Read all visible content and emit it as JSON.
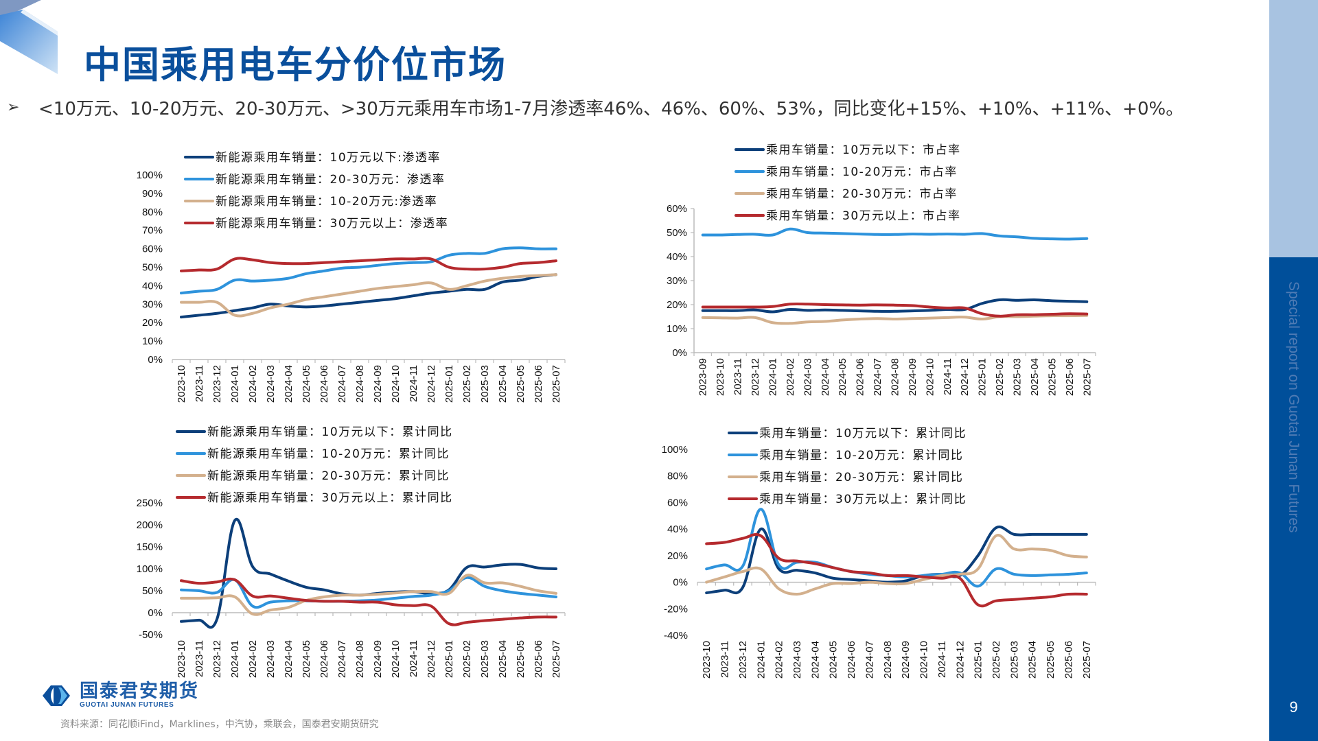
{
  "title": "中国乘用电车分价位市场",
  "bullet": "<10万元、10-20万元、20-30万元、>30万元乘用车市场1-7月渗透率46%、46%、60%、53%，同比变化+15%、+10%、+11%、+0%。",
  "sidebar": {
    "text": "Special report on Guotai Junan Futures",
    "page_number": "9",
    "colors": {
      "top": "#a8c3e1",
      "bottom": "#004f9a"
    }
  },
  "logo": {
    "cn": "国泰君安期货",
    "en": "GUOTAI JUNAN FUTURES"
  },
  "source": "资料来源：同花顺iFind，Marklines，中汽协，乘联会，国泰君安期货研究",
  "chart_data": [
    {
      "type": "line",
      "categories": [
        "2023-10",
        "2023-11",
        "2023-12",
        "2024-01",
        "2024-02",
        "2024-03",
        "2024-04",
        "2024-05",
        "2024-06",
        "2024-07",
        "2024-08",
        "2024-09",
        "2024-10",
        "2024-11",
        "2024-12",
        "2025-01",
        "2025-02",
        "2025-03",
        "2025-04",
        "2025-05",
        "2025-06",
        "2025-07"
      ],
      "ylim": [
        0,
        100
      ],
      "yticks": [
        0,
        10,
        20,
        30,
        40,
        50,
        60,
        70,
        80,
        90,
        100
      ],
      "yunit": "%",
      "legend_placement": "top",
      "series": [
        {
          "name": "新能源乘用车销量：10万元以下:渗透率",
          "color": "#0c3f7a",
          "values": [
            23,
            24,
            25,
            26.5,
            28,
            30,
            29,
            28.5,
            29,
            30,
            31,
            32,
            33,
            34.5,
            36,
            37,
            38,
            38,
            42,
            43,
            45,
            46
          ]
        },
        {
          "name": "新能源乘用车销量：20-30万元：渗透率",
          "color": "#2e93dc",
          "values": [
            36,
            37,
            38,
            43,
            42.5,
            43,
            44,
            46.5,
            48,
            49.5,
            50,
            51,
            52,
            52.5,
            53,
            56.5,
            57.5,
            57.5,
            60,
            60.5,
            60,
            60
          ]
        },
        {
          "name": "新能源乘用车销量：10-20万元:渗透率",
          "color": "#d3b08d",
          "values": [
            31,
            31,
            31,
            24,
            25,
            28,
            30,
            32.5,
            34,
            35.5,
            37,
            38.5,
            39.5,
            40.5,
            41.5,
            38,
            40,
            42.5,
            44,
            45,
            45.5,
            46
          ]
        },
        {
          "name": "新能源乘用车销量：30万元以上：渗透率",
          "color": "#b52a2e",
          "values": [
            48,
            48.5,
            49,
            54.5,
            54,
            52.5,
            52,
            52,
            52.5,
            53,
            53.5,
            54,
            54.5,
            54.5,
            54.5,
            50,
            49,
            49,
            50,
            52,
            52.5,
            53.5
          ]
        }
      ]
    },
    {
      "type": "line",
      "categories": [
        "2023-09",
        "2023-10",
        "2023-11",
        "2023-12",
        "2024-01",
        "2024-02",
        "2024-03",
        "2024-04",
        "2024-05",
        "2024-06",
        "2024-07",
        "2024-08",
        "2024-09",
        "2024-10",
        "2024-11",
        "2024-12",
        "2025-01",
        "2025-02",
        "2025-03",
        "2025-04",
        "2025-05",
        "2025-06",
        "2025-07"
      ],
      "ylim": [
        0,
        60
      ],
      "yticks": [
        0,
        10,
        20,
        30,
        40,
        50,
        60
      ],
      "yunit": "%",
      "legend_placement": "top",
      "series": [
        {
          "name": "乘用车销量：10万元以下：市占率",
          "color": "#0c3f7a",
          "values": [
            17.5,
            17.5,
            17.5,
            17.8,
            17,
            18,
            17.6,
            17.8,
            17.6,
            17.4,
            17.2,
            17.2,
            17.4,
            17.6,
            18,
            18,
            20.5,
            22,
            21.8,
            22,
            21.6,
            21.4,
            21.2
          ]
        },
        {
          "name": "乘用车销量：10-20万元：市占率",
          "color": "#2e93dc",
          "values": [
            49,
            49,
            49.2,
            49.3,
            49,
            51.5,
            50,
            49.8,
            49.6,
            49.4,
            49.2,
            49.2,
            49.4,
            49.3,
            49.4,
            49.3,
            49.6,
            48.6,
            48.2,
            47.6,
            47.4,
            47.3,
            47.5
          ]
        },
        {
          "name": "乘用车销量：20-30万元：市占率",
          "color": "#d3b08d",
          "values": [
            14.6,
            14.5,
            14.4,
            14.6,
            12.5,
            12.2,
            12.8,
            13,
            13.6,
            14,
            14.2,
            14,
            14.2,
            14.4,
            14.6,
            14.8,
            14,
            15,
            15,
            15.2,
            15.4,
            15.4,
            15.5
          ]
        },
        {
          "name": "乘用车销量：30万元以上：市占率",
          "color": "#b52a2e",
          "values": [
            19,
            19,
            19,
            19,
            19.2,
            20.2,
            20.2,
            20,
            19.9,
            19.8,
            19.9,
            19.8,
            19.6,
            19,
            18.6,
            18.6,
            16.2,
            15.2,
            15.8,
            15.8,
            16,
            16.2,
            16.1
          ]
        }
      ]
    },
    {
      "type": "line",
      "categories": [
        "2023-10",
        "2023-11",
        "2023-12",
        "2024-01",
        "2024-02",
        "2024-03",
        "2024-04",
        "2024-05",
        "2024-06",
        "2024-07",
        "2024-08",
        "2024-09",
        "2024-10",
        "2024-11",
        "2024-12",
        "2025-01",
        "2025-02",
        "2025-03",
        "2025-04",
        "2025-05",
        "2025-06",
        "2025-07"
      ],
      "ylim": [
        -50,
        250
      ],
      "yticks": [
        -50,
        0,
        50,
        100,
        150,
        200,
        250
      ],
      "yunit": "%",
      "legend_placement": "top",
      "series": [
        {
          "name": "新能源乘用车销量：10万元以下：累计同比",
          "color": "#0c3f7a",
          "values": [
            -20,
            -17,
            -15,
            210,
            105,
            88,
            72,
            58,
            52,
            43,
            40,
            44,
            47,
            48,
            44,
            52,
            103,
            104,
            109,
            110,
            102,
            100
          ]
        },
        {
          "name": "新能源乘用车销量：10-20万元：累计同比",
          "color": "#2e93dc",
          "values": [
            52,
            50,
            46,
            75,
            15,
            24,
            27,
            27,
            26,
            26,
            27,
            29,
            33,
            37,
            40,
            50,
            80,
            60,
            50,
            44,
            40,
            36
          ]
        },
        {
          "name": "新能源乘用车销量：20-30万元：累计同比",
          "color": "#d3b08d",
          "values": [
            33,
            33,
            34,
            36,
            -3,
            6,
            12,
            28,
            36,
            40,
            40,
            42,
            45,
            48,
            48,
            44,
            85,
            68,
            68,
            60,
            50,
            44
          ]
        },
        {
          "name": "新能源乘用车销量：30万元以上：累计同比",
          "color": "#b52a2e",
          "values": [
            73,
            67,
            70,
            75,
            38,
            38,
            33,
            28,
            26,
            26,
            24,
            24,
            18,
            16,
            15,
            -25,
            -22,
            -18,
            -15,
            -12,
            -10,
            -10
          ]
        }
      ]
    },
    {
      "type": "line",
      "categories": [
        "2023-10",
        "2023-11",
        "2023-12",
        "2024-01",
        "2024-02",
        "2024-03",
        "2024-04",
        "2024-05",
        "2024-06",
        "2024-07",
        "2024-08",
        "2024-09",
        "2024-10",
        "2024-11",
        "2024-12",
        "2025-01",
        "2025-02",
        "2025-03",
        "2025-04",
        "2025-05",
        "2025-06",
        "2025-07"
      ],
      "ylim": [
        -40,
        100
      ],
      "yticks": [
        -40,
        -20,
        0,
        20,
        40,
        60,
        80,
        100
      ],
      "yunit": "%",
      "legend_placement": "top",
      "series": [
        {
          "name": "乘用车销量：10万元以下：累计同比",
          "color": "#0c3f7a",
          "values": [
            -8,
            -6,
            -4,
            40,
            10,
            9,
            7,
            3,
            2,
            1,
            0,
            1,
            5,
            6,
            5,
            20,
            41,
            36,
            36,
            36,
            36,
            36
          ]
        },
        {
          "name": "乘用车销量：10-20万元：累计同比",
          "color": "#2e93dc",
          "values": [
            10,
            13,
            12,
            55,
            13,
            15,
            15,
            11,
            8,
            6,
            5,
            4,
            5,
            6,
            7,
            -3,
            10,
            6,
            5,
            5.5,
            6,
            7
          ]
        },
        {
          "name": "乘用车销量：20-30万元：累计同比",
          "color": "#d3b08d",
          "values": [
            0,
            4,
            8,
            10,
            -5,
            -9,
            -5,
            -1,
            -1,
            0,
            -1,
            -1,
            2,
            5,
            6,
            10,
            35,
            25,
            25,
            24,
            20,
            19
          ]
        },
        {
          "name": "乘用车销量：30万元以上：累计同比",
          "color": "#b52a2e",
          "values": [
            29,
            30,
            33,
            35,
            18,
            16,
            14,
            11,
            8,
            7,
            5,
            5,
            4,
            3,
            3,
            -17,
            -14,
            -13,
            -12,
            -11,
            -9,
            -9
          ]
        }
      ]
    }
  ]
}
